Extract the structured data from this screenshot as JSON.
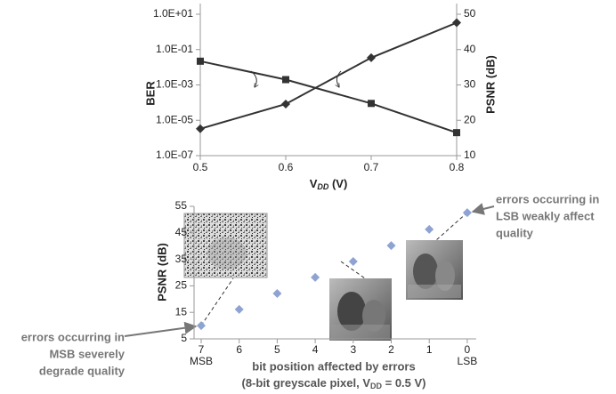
{
  "chart_data": [
    {
      "type": "line",
      "x_label": {
        "main": "V",
        "sub": "DD",
        "end": " (V)"
      },
      "y_label": "BER",
      "y2_label": "PSNR (dB)",
      "x": [
        0.5,
        0.6,
        0.7,
        0.8
      ],
      "xlim": [
        0.5,
        0.8
      ],
      "xticks": [
        0.5,
        0.6,
        0.7,
        0.8
      ],
      "ylim": [
        1e-07,
        10
      ],
      "log_y": true,
      "yticks": [
        {
          "value": 1e-07,
          "label": "1.0E-07"
        },
        {
          "value": 1e-05,
          "label": "1.0E-05"
        },
        {
          "value": 0.001,
          "label": "1.0E-03"
        },
        {
          "value": 0.1,
          "label": "1.0E-01"
        },
        {
          "value": 10,
          "label": "1.0E+01"
        }
      ],
      "y2lim": [
        10,
        50
      ],
      "y2ticks": [
        10,
        20,
        30,
        40,
        50
      ],
      "series": [
        {
          "name": "BER",
          "color": "#333333",
          "marker": "square",
          "values": [
            0.022,
            0.002,
            9e-05,
            2e-06
          ]
        },
        {
          "name": "PSNR",
          "color": "#333333",
          "marker": "diamond",
          "axis": "y2",
          "values": [
            17.6,
            24.6,
            37.7,
            47.6
          ]
        }
      ]
    },
    {
      "type": "scatter",
      "y_label": "PSNR (dB)",
      "categories": [
        "7",
        "6",
        "5",
        "4",
        "3",
        "2",
        "1",
        "0"
      ],
      "category_sublabels": [
        "MSB",
        null,
        null,
        null,
        null,
        null,
        null,
        "LSB"
      ],
      "x_label": {
        "line1": "bit position affected by errors",
        "line2": "(8-bit greyscale pixel, V",
        "sub": "DD",
        "end": " = 0.5 V)"
      },
      "ylim": [
        5,
        55
      ],
      "yticks": [
        5,
        15,
        25,
        35,
        45,
        55
      ],
      "color": "#8fa3d3",
      "values": [
        10.0,
        16.1,
        22.1,
        28.2,
        34.2,
        40.2,
        46.3,
        52.6
      ],
      "annotations": [
        {
          "lines": [
            "errors occurring in",
            "MSB severely",
            "degrade quality"
          ]
        },
        {
          "lines": [
            "errors occurring in",
            "LSB weakly affect",
            "quality"
          ]
        }
      ]
    }
  ]
}
